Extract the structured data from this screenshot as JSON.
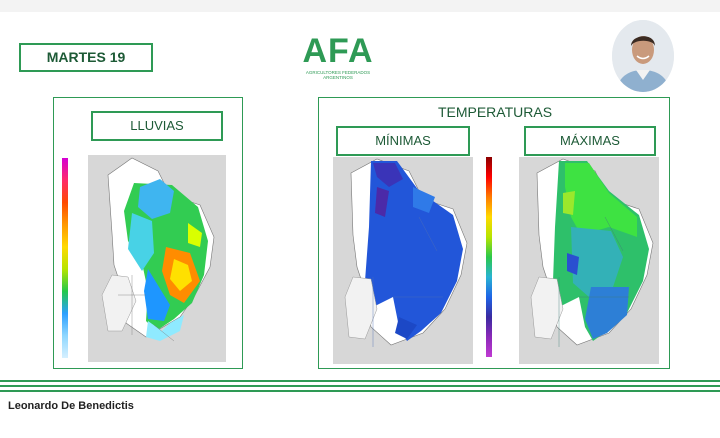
{
  "header": {
    "day_label": "MARTES 19",
    "logo_text": "AFA",
    "logo_subtitle_line1": "AGRICULTORES FEDERADOS",
    "logo_subtitle_line2": "ARGENTINOS"
  },
  "rain_panel": {
    "title": "LLUVIAS"
  },
  "temp_panel": {
    "title": "TEMPERATURAS",
    "min_title": "MÍNIMAS",
    "max_title": "MÁXIMAS"
  },
  "footer": {
    "presenter_name": "Leonardo De Benedictis"
  },
  "colors": {
    "brand_green": "#2e9a55",
    "dark_green_text": "#1d5a36"
  },
  "icons": {
    "presenter_avatar": "person-photo",
    "map_rain": "argentina-rain-map",
    "map_min": "argentina-min-temp-map",
    "map_max": "argentina-max-temp-map"
  }
}
